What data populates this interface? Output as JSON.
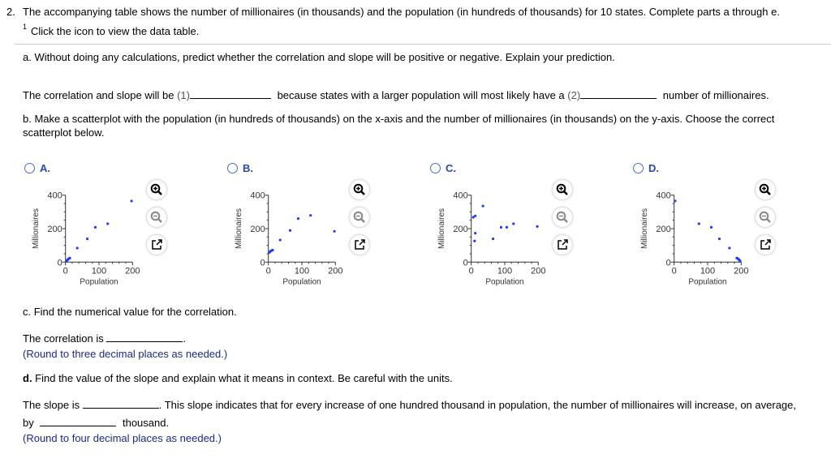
{
  "question": {
    "number": "2.",
    "intro": "The accompanying table shows the number of millionaires (in thousands) and the population (in hundreds of thousands) for 10 states. Complete parts a through e.",
    "icon_marker": "1",
    "click_text": "Click the icon to view the data table."
  },
  "part_a": {
    "prompt": "a. Without doing any calculations, predict whether the correlation and slope will be positive or negative. Explain your prediction.",
    "s1": "The correlation and slope will be",
    "b1": "(1)",
    "s2": "because states with a larger population will most likely have a",
    "b2": "(2)",
    "s3": "number of millionaires."
  },
  "part_b": {
    "prompt_l1": "b. Make a scatterplot with the population (in hundreds of thousands) on the x-axis and the number of millionaires (in thousands) on the y-axis. Choose the correct",
    "prompt_l2": "scatterplot below."
  },
  "options": [
    {
      "label": "A."
    },
    {
      "label": "B."
    },
    {
      "label": "C."
    },
    {
      "label": "D."
    }
  ],
  "part_c": {
    "prompt": "c. Find the numerical value for the correlation.",
    "answer_prefix": "The correlation is",
    "answer_suffix": ".",
    "note": "(Round to three decimal places as needed.)"
  },
  "part_d": {
    "prompt_bold": "d.",
    "prompt": " Find the value of the slope and explain what it means in context. Be careful with the units.",
    "s1": "The slope is",
    "s2": ". This slope indicates that for every increase of one hundred thousand in population, the number of millionaires will increase, on average,",
    "s3": "by",
    "s4": "thousand.",
    "note": "(Round to four decimal places as needed.)"
  },
  "chart_data": [
    {
      "type": "scatter",
      "option": "A",
      "xlabel": "Population",
      "ylabel": "Millionaires",
      "xlim": [
        0,
        200
      ],
      "ylim": [
        0,
        400
      ],
      "xticks": [
        "0",
        "100",
        "200"
      ],
      "yticks": [
        "0",
        "200",
        "400"
      ],
      "color": "#1f3cff",
      "points": [
        [
          3,
          5
        ],
        [
          5,
          11
        ],
        [
          7,
          16
        ],
        [
          10,
          21
        ],
        [
          13,
          24
        ],
        [
          35,
          84
        ],
        [
          65,
          139
        ],
        [
          89,
          208
        ],
        [
          126,
          229
        ],
        [
          197,
          365
        ]
      ]
    },
    {
      "type": "scatter",
      "option": "B",
      "xlabel": "Population",
      "ylabel": "Millionaires",
      "xlim": [
        0,
        200
      ],
      "ylim": [
        0,
        400
      ],
      "xticks": [
        "0",
        "100",
        "200"
      ],
      "yticks": [
        "0",
        "200",
        "400"
      ],
      "color": "#1f3cff",
      "points": [
        [
          3,
          58
        ],
        [
          5,
          63
        ],
        [
          7,
          66
        ],
        [
          10,
          69
        ],
        [
          13,
          72
        ],
        [
          35,
          132
        ],
        [
          65,
          189
        ],
        [
          89,
          260
        ],
        [
          126,
          279
        ],
        [
          197,
          184
        ]
      ]
    },
    {
      "type": "scatter",
      "option": "C",
      "xlabel": "Population",
      "ylabel": "Millionaires",
      "xlim": [
        0,
        200
      ],
      "ylim": [
        0,
        400
      ],
      "xticks": [
        "0",
        "100",
        "200"
      ],
      "yticks": [
        "0",
        "200",
        "400"
      ],
      "color": "#1f3cff",
      "points": [
        [
          6,
          268
        ],
        [
          12,
          276
        ],
        [
          35,
          335
        ],
        [
          12,
          173
        ],
        [
          10,
          126
        ],
        [
          65,
          139
        ],
        [
          89,
          208
        ],
        [
          106,
          208
        ],
        [
          126,
          229
        ],
        [
          197,
          213
        ]
      ]
    },
    {
      "type": "scatter",
      "option": "D",
      "xlabel": "Population",
      "ylabel": "Millionaires",
      "xlim": [
        0,
        200
      ],
      "ylim": [
        0,
        400
      ],
      "xticks": [
        "0",
        "100",
        "200"
      ],
      "yticks": [
        "0",
        "200",
        "400"
      ],
      "color": "#1f3cff",
      "points": [
        [
          197,
          5
        ],
        [
          195,
          11
        ],
        [
          193,
          16
        ],
        [
          190,
          21
        ],
        [
          187,
          24
        ],
        [
          165,
          84
        ],
        [
          135,
          139
        ],
        [
          111,
          208
        ],
        [
          74,
          229
        ],
        [
          3,
          365
        ]
      ]
    }
  ],
  "icons": {
    "zoom_in": "zoom-in-icon",
    "zoom_out": "zoom-out-icon",
    "popout": "popout-icon"
  }
}
